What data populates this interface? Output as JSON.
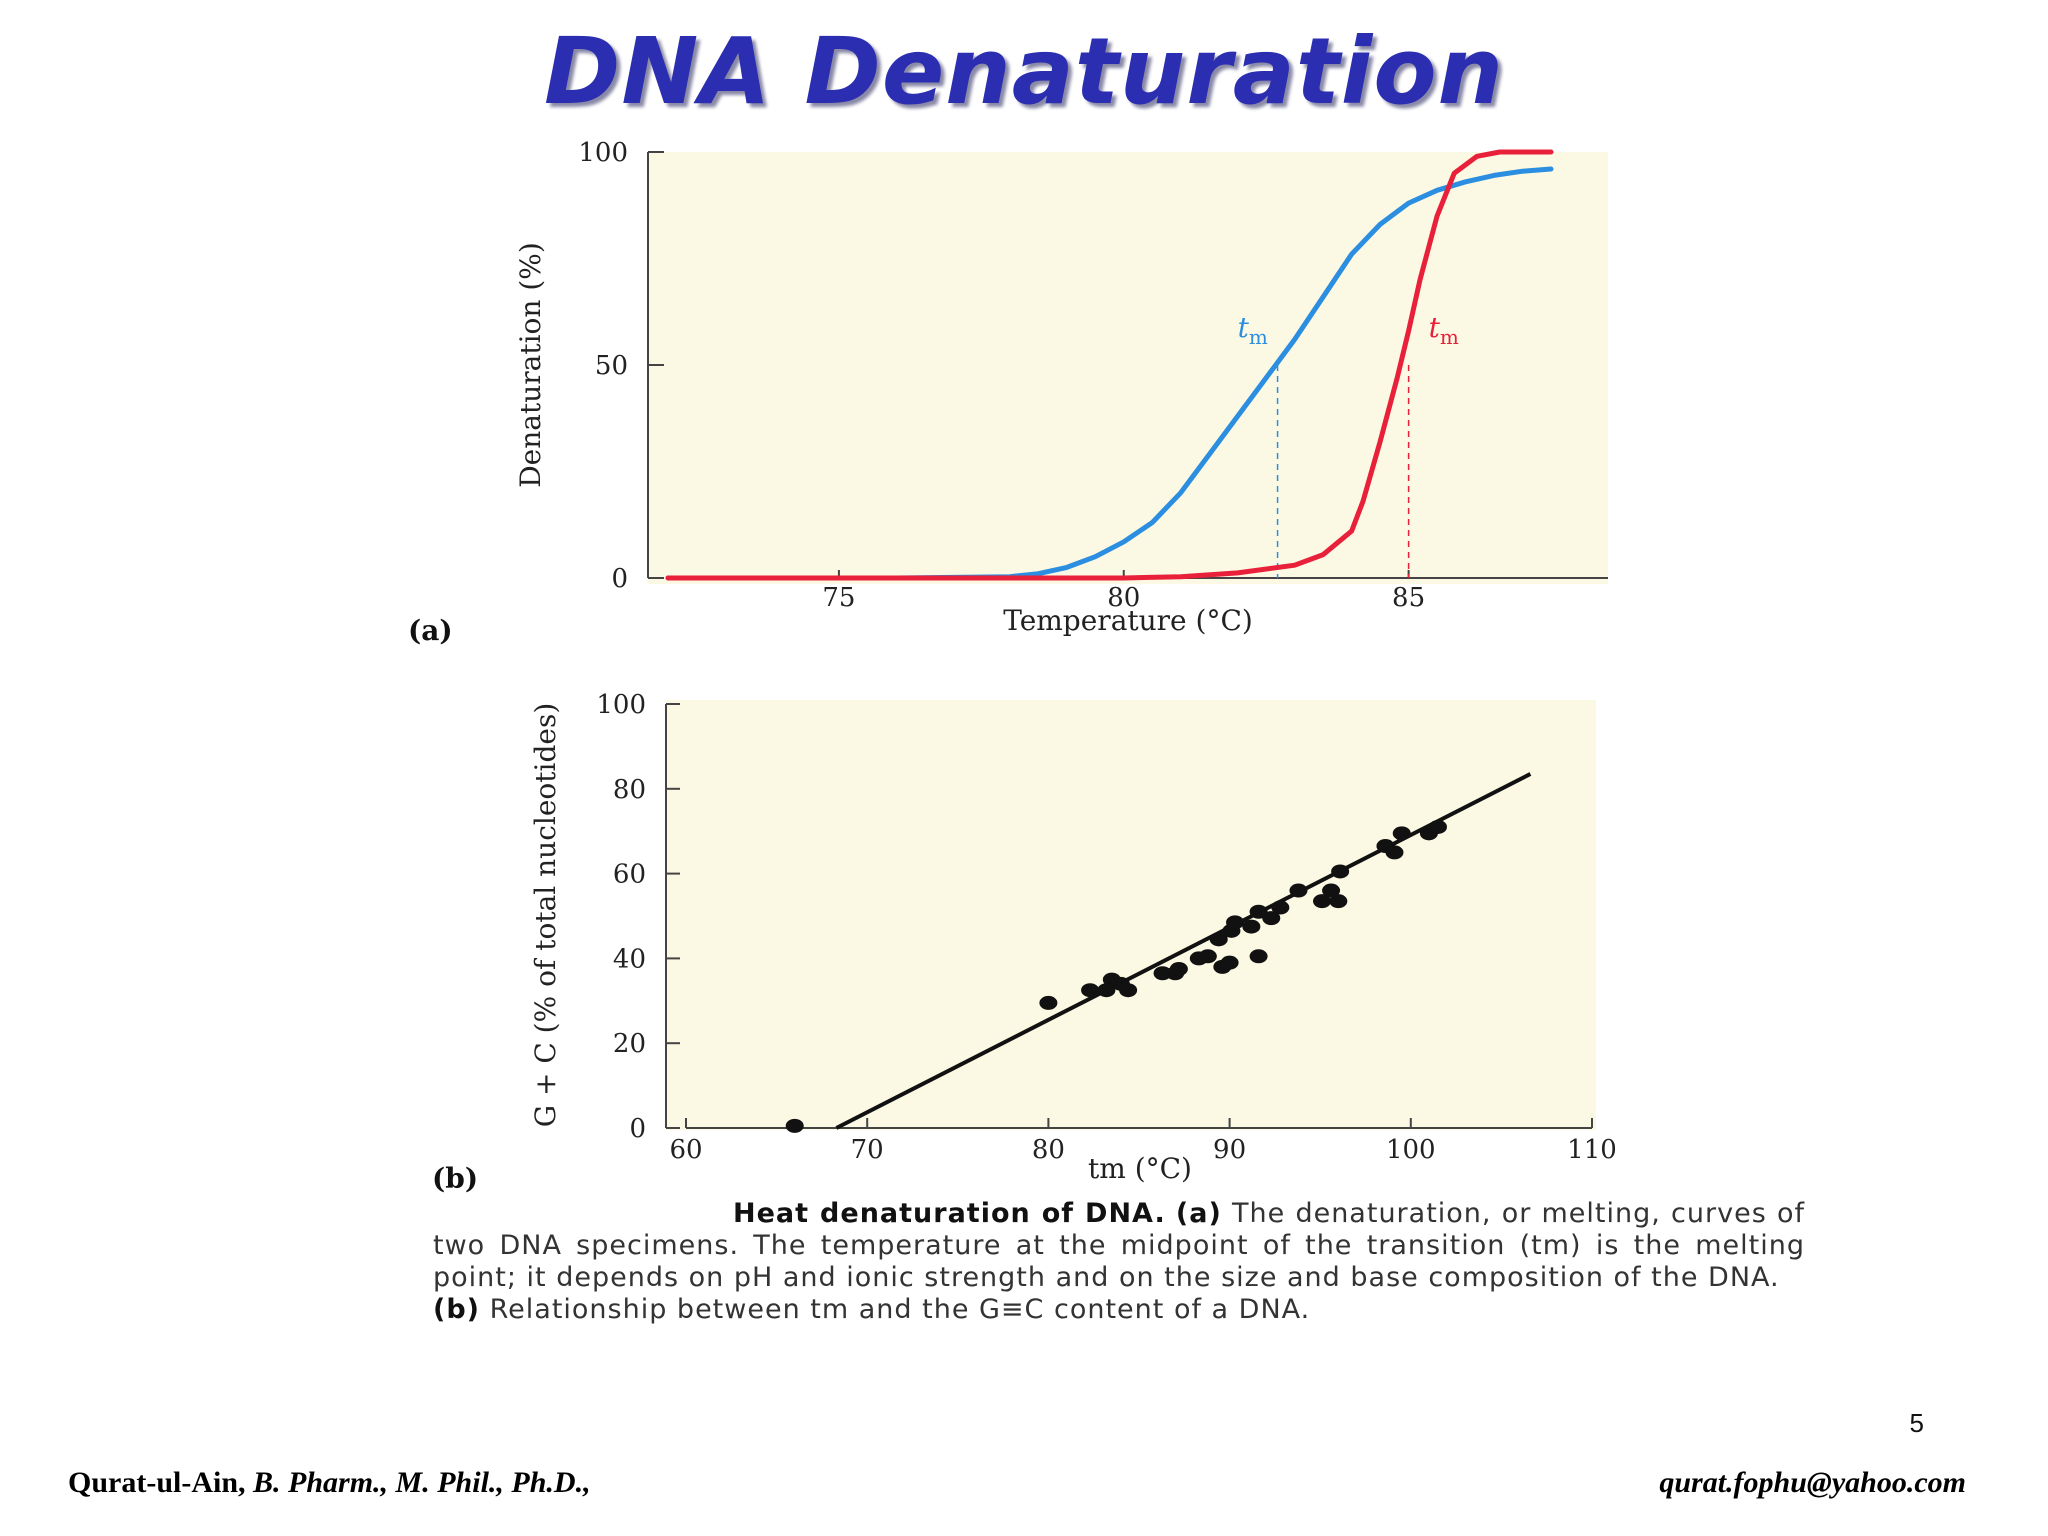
{
  "slide": {
    "title": "DNA Denaturation",
    "page_number": "5",
    "footer_name": "Qurat-ul-Ain,",
    "footer_degrees": "B. Pharm., M. Phil., Ph.D.,",
    "footer_email": "qurat.fophu@yahoo.com"
  },
  "caption": {
    "heading": "Heat denaturation of DNA.",
    "part_a_marker": "(a)",
    "part_a_text": "The denaturation, or melting, curves of two DNA specimens. The temperature at the midpoint of the transition (tm) is the melting point; it depends on pH and ionic strength and on the size and base composition of the DNA.",
    "part_b_marker": "(b)",
    "part_b_text": "Relationship between tm and the G≡C content of a DNA."
  },
  "chart_data": [
    {
      "type": "line",
      "panel_label": "(a)",
      "xlabel": "Temperature (°C)",
      "ylabel": "Denaturation (%)",
      "xlim": [
        72,
        88.5
      ],
      "ylim": [
        0,
        100
      ],
      "xticks": [
        75,
        80,
        85
      ],
      "yticks": [
        0,
        50,
        100
      ],
      "background": "#fbf9e4",
      "series": [
        {
          "color": "#2b8ee0",
          "x": [
            72,
            74,
            76,
            78,
            78.5,
            79,
            79.5,
            80,
            80.5,
            81,
            81.5,
            82,
            82.5,
            83,
            83.5,
            84,
            84.5,
            85,
            85.5,
            86,
            86.5,
            87,
            87.5
          ],
          "y": [
            0,
            0,
            0,
            0.3,
            1,
            2.5,
            5,
            8.5,
            13,
            20,
            29,
            38,
            47,
            56,
            66,
            76,
            83,
            88,
            91,
            93,
            94.5,
            95.5,
            96
          ],
          "tm": 82.7,
          "tm_label": "tm"
        },
        {
          "color": "#e8203a",
          "x": [
            72,
            76,
            80,
            81,
            82,
            83,
            83.5,
            84,
            84.2,
            84.5,
            84.8,
            85,
            85.2,
            85.5,
            85.8,
            86.2,
            86.6,
            87,
            87.5
          ],
          "y": [
            0,
            0,
            0,
            0.3,
            1.2,
            3,
            5.5,
            11,
            18,
            32,
            47,
            58,
            70,
            85,
            95,
            99,
            100,
            100,
            100
          ],
          "tm": 85,
          "tm_label": "tm"
        }
      ]
    },
    {
      "type": "scatter",
      "panel_label": "(b)",
      "xlabel": "tm (°C)",
      "ylabel": "G + C (% of total nucleotides)",
      "xlim": [
        60,
        110
      ],
      "ylim": [
        0,
        100
      ],
      "xticks": [
        60,
        70,
        80,
        90,
        100,
        110
      ],
      "yticks": [
        0,
        20,
        40,
        60,
        80,
        100
      ],
      "background": "#fbf9e4",
      "points": [
        [
          66,
          0.5
        ],
        [
          80,
          29.5
        ],
        [
          82.3,
          32.5
        ],
        [
          83.2,
          32.5
        ],
        [
          83.5,
          35
        ],
        [
          84,
          34
        ],
        [
          84.4,
          32.5
        ],
        [
          86.3,
          36.5
        ],
        [
          87,
          36.5
        ],
        [
          87.2,
          37.5
        ],
        [
          88.3,
          40
        ],
        [
          88.8,
          40.5
        ],
        [
          89.6,
          38
        ],
        [
          90,
          39
        ],
        [
          89.4,
          44.5
        ],
        [
          90.1,
          46.5
        ],
        [
          90.3,
          48.5
        ],
        [
          91.2,
          47.5
        ],
        [
          91.6,
          51
        ],
        [
          92.3,
          49.5
        ],
        [
          91.6,
          40.5
        ],
        [
          92.8,
          52
        ],
        [
          93.8,
          56
        ],
        [
          95.1,
          53.5
        ],
        [
          95.6,
          56
        ],
        [
          96,
          53.5
        ],
        [
          96.1,
          60.5
        ],
        [
          98.6,
          66.5
        ],
        [
          99.1,
          65
        ],
        [
          99.5,
          69.5
        ],
        [
          101,
          69.5
        ],
        [
          101.5,
          71
        ]
      ],
      "fit_line": {
        "x": [
          68.3,
          106.6
        ],
        "y": [
          0,
          83.5
        ]
      }
    }
  ]
}
